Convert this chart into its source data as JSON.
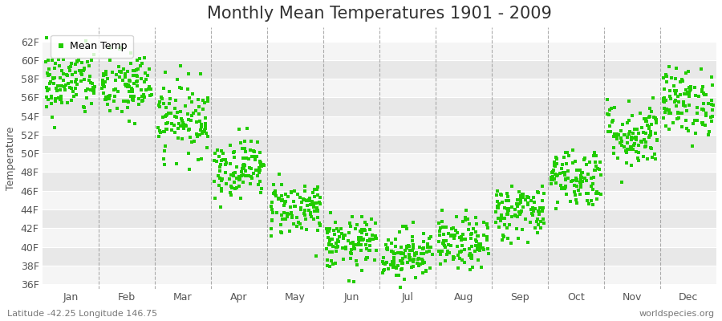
{
  "title": "Monthly Mean Temperatures 1901 - 2009",
  "ylabel": "Temperature",
  "xlabel_labels": [
    "Jan",
    "Feb",
    "Mar",
    "Apr",
    "May",
    "Jun",
    "Jul",
    "Aug",
    "Sep",
    "Oct",
    "Nov",
    "Dec"
  ],
  "ytick_labels": [
    "36F",
    "38F",
    "40F",
    "42F",
    "44F",
    "46F",
    "48F",
    "50F",
    "52F",
    "54F",
    "56F",
    "58F",
    "60F",
    "62F"
  ],
  "ytick_values": [
    36,
    38,
    40,
    42,
    44,
    46,
    48,
    50,
    52,
    54,
    56,
    58,
    60,
    62
  ],
  "ylim": [
    35.5,
    63.5
  ],
  "xlim": [
    0,
    12
  ],
  "dot_color": "#22cc00",
  "dot_size": 5,
  "background_color": "#ffffff",
  "plot_bg_color": "#ffffff",
  "band_color_light": "#f5f5f5",
  "band_color_dark": "#e8e8e8",
  "grid_color": "#ffffff",
  "dashed_line_color": "#999999",
  "legend_label": "Mean Temp",
  "footer_left": "Latitude -42.25 Longitude 146.75",
  "footer_right": "worldspecies.org",
  "title_fontsize": 15,
  "axis_fontsize": 9,
  "footer_fontsize": 8,
  "monthly_means": [
    57.5,
    57.2,
    53.8,
    48.5,
    44.2,
    40.3,
    39.2,
    40.3,
    43.8,
    47.5,
    52.0,
    55.5
  ],
  "monthly_stds": [
    1.8,
    1.9,
    2.0,
    1.6,
    1.5,
    1.4,
    1.4,
    1.4,
    1.5,
    1.6,
    1.8,
    1.8
  ],
  "n_years": 109,
  "seed": 42
}
